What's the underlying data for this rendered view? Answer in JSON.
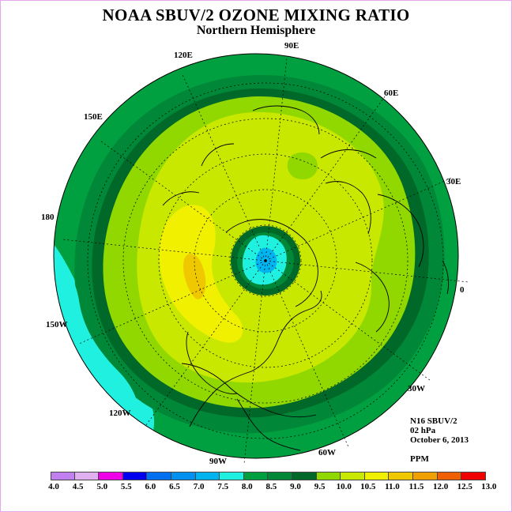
{
  "title": "NOAA SBUV/2 OZONE MIXING RATIO",
  "subtitle": "Northern Hemisphere",
  "longitude_labels": [
    "90E",
    "60E",
    "30E",
    "0",
    "30W",
    "60W",
    "90W",
    "120W",
    "150W",
    "180",
    "150E",
    "120E"
  ],
  "info": {
    "satellite": "N16 SBUV/2",
    "level": "02 hPa",
    "date": "October 6, 2013",
    "units": "PPM"
  },
  "colorbar": {
    "ticks": [
      "4.0",
      "4.5",
      "5.0",
      "5.5",
      "6.0",
      "6.5",
      "7.0",
      "7.5",
      "8.0",
      "8.5",
      "9.0",
      "9.5",
      "10.0",
      "10.5",
      "11.0",
      "11.5",
      "12.0",
      "12.5",
      "13.0"
    ],
    "colors": [
      "#c080f0",
      "#e0b0f0",
      "#f000e8",
      "#0000f0",
      "#0070f0",
      "#0090f0",
      "#00b4f0",
      "#20f0e0",
      "#00a040",
      "#008838",
      "#006828",
      "#90d800",
      "#c8e800",
      "#f0f000",
      "#f0c800",
      "#f0a000",
      "#f06000",
      "#f00000",
      "#806040"
    ]
  },
  "colors": {
    "outer_ring": "#00a040",
    "ring_8_5": "#008838",
    "ring_9": "#006828",
    "band_9_5": "#90d800",
    "field_10": "#c8e800",
    "field_10_5": "#f0f000",
    "field_11": "#f0c800",
    "low_7_5": "#20f0e0",
    "low_6_5": "#00b4f0"
  }
}
